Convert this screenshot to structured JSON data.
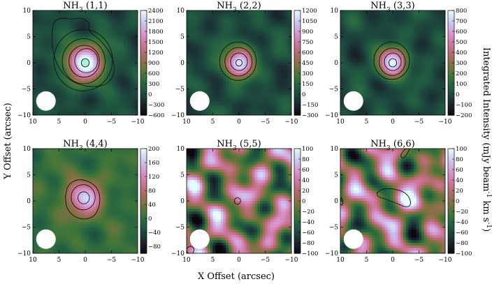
{
  "chart_data": {
    "type": "heatmap",
    "xlabel": "X Offset (arcsec)",
    "ylabel": "Y Offset (arcsec)",
    "colorbar_label": "Integrated Intensity (mJy beam^-1 km s^-1)",
    "colorbar_label_parts": {
      "p1": "Integrated Intensity (mJy beam",
      "sup1": "-1",
      "p2": " km s",
      "sup2": "-1",
      "p3": ")"
    },
    "xlim": [
      10,
      -10
    ],
    "ylim": [
      -10,
      10
    ],
    "x_ticks": [
      "10",
      "5",
      "0",
      "−5",
      "−10"
    ],
    "y_ticks": [
      "10",
      "5",
      "0",
      "−5",
      "−10"
    ],
    "colormap": "cubehelix",
    "beam": {
      "x": 7.5,
      "y": -7.3,
      "label": "beam"
    },
    "panels": [
      {
        "title_base": "NH",
        "title_sub": "3",
        "title_trans": " (1,1)",
        "vmin": -600,
        "vmax": 2400,
        "cbar_ticks": [
          "2400",
          "2100",
          "1800",
          "1500",
          "1200",
          "900",
          "600",
          "300",
          "0",
          "−300",
          "−600"
        ],
        "peak": 2400,
        "peak_x": 0,
        "peak_y": 0,
        "sigma": 2.6,
        "contours": [
          {
            "type": "blob",
            "cx": -0.2,
            "cy": 0.4,
            "r": 2.2
          },
          {
            "type": "blob",
            "cx": 0.2,
            "cy": 0.3,
            "r": 2.9
          },
          {
            "type": "blob",
            "cx": 0.3,
            "cy": 0.3,
            "r": 4.1
          },
          {
            "type": "blob",
            "cx": 0.4,
            "cy": 0.5,
            "r": 5.6
          },
          {
            "type": "path",
            "pts": [
              [
                6.3,
                3.2
              ],
              [
                6.4,
                5.8
              ],
              [
                6.0,
                8.0
              ],
              [
                4.5,
                8.6
              ],
              [
                2.6,
                8.3
              ],
              [
                0.6,
                8.6
              ],
              [
                -0.9,
                7.6
              ],
              [
                -0.6,
                6.0
              ],
              [
                -2.4,
                4.8
              ],
              [
                -4.6,
                2.3
              ],
              [
                -5.7,
                -0.6
              ],
              [
                -5.2,
                -3.0
              ],
              [
                -3.6,
                -4.4
              ],
              [
                -0.8,
                -4.6
              ],
              [
                1.8,
                -4.0
              ],
              [
                4.1,
                -2.4
              ],
              [
                5.7,
                0.2
              ]
            ]
          },
          {
            "type": "blob",
            "cx": 0.0,
            "cy": 0.0,
            "r": 0.75,
            "fill": "#a9f2df"
          }
        ]
      },
      {
        "title_base": "NH",
        "title_sub": "3",
        "title_trans": " (2,2)",
        "vmin": -300,
        "vmax": 1200,
        "cbar_ticks": [
          "1200",
          "1050",
          "900",
          "750",
          "600",
          "450",
          "300",
          "150",
          "0",
          "−150",
          "−300"
        ],
        "peak": 1150,
        "peak_x": 0,
        "peak_y": 0,
        "sigma": 2.0,
        "contours": [
          {
            "type": "blob",
            "cx": 0.0,
            "cy": 0.2,
            "r": 1.6
          },
          {
            "type": "blob",
            "cx": 0.1,
            "cy": 0.2,
            "r": 2.6
          },
          {
            "type": "blob",
            "cx": 0.2,
            "cy": 0.3,
            "r": 3.5
          },
          {
            "type": "blob",
            "cx": 0.0,
            "cy": 0.0,
            "r": 0.6
          }
        ]
      },
      {
        "title_base": "NH",
        "title_sub": "3",
        "title_trans": " (3,3)",
        "vmin": -200,
        "vmax": 800,
        "cbar_ticks": [
          "800",
          "700",
          "600",
          "500",
          "400",
          "300",
          "200",
          "100",
          "0",
          "−100",
          "−200"
        ],
        "peak": 780,
        "peak_x": 0,
        "peak_y": 0,
        "sigma": 1.9,
        "contours": [
          {
            "type": "blob",
            "cx": 0.0,
            "cy": 0.2,
            "r": 1.6
          },
          {
            "type": "blob",
            "cx": 0.1,
            "cy": 0.2,
            "r": 2.5
          },
          {
            "type": "blob",
            "cx": 0.2,
            "cy": 0.4,
            "r": 3.4
          },
          {
            "type": "blob",
            "cx": 0.0,
            "cy": 0.0,
            "r": 0.75
          }
        ]
      },
      {
        "title_base": "NH",
        "title_sub": "3",
        "title_trans": " (4,4)",
        "vmin": -100,
        "vmax": 200,
        "cbar_ticks": [
          "200",
          "160",
          "120",
          "80",
          "40",
          "0",
          "−40",
          "−80"
        ],
        "peak": 150,
        "peak_x": 0.3,
        "peak_y": 0.5,
        "sigma": 2.5,
        "contours": [
          {
            "type": "blob",
            "cx": 0.3,
            "cy": 0.6,
            "r": 1.1
          },
          {
            "type": "blob",
            "cx": 0.4,
            "cy": 0.7,
            "r": 2.3
          },
          {
            "type": "path",
            "pts": [
              [
                3.8,
                0.8
              ],
              [
                3.4,
                3.0
              ],
              [
                1.6,
                4.2
              ],
              [
                -0.8,
                3.8
              ],
              [
                -2.6,
                2.2
              ],
              [
                -2.9,
                -0.4
              ],
              [
                -1.9,
                -2.9
              ],
              [
                0.2,
                -3.6
              ],
              [
                2.2,
                -3.0
              ],
              [
                3.6,
                -1.4
              ]
            ]
          }
        ]
      },
      {
        "title_base": "NH",
        "title_sub": "3",
        "title_trans": " (5,5)",
        "vmin": -100,
        "vmax": 100,
        "cbar_ticks": [
          "100",
          "80",
          "60",
          "40",
          "20",
          "0",
          "−20",
          "−40",
          "−60",
          "−80",
          "−100"
        ],
        "peak": 45,
        "peak_x": 0.3,
        "peak_y": 0.2,
        "sigma": 1.4,
        "contours": [
          {
            "type": "blob",
            "cx": 0.3,
            "cy": 0.0,
            "r": 0.6
          },
          {
            "type": "blob",
            "cx": 9.3,
            "cy": -9.4,
            "r": 0.7
          }
        ]
      },
      {
        "title_base": "NH",
        "title_sub": "3",
        "title_trans": " (6,6)",
        "vmin": -100,
        "vmax": 100,
        "cbar_ticks": [
          "100",
          "80",
          "60",
          "40",
          "20",
          "0",
          "−20",
          "−40",
          "−60",
          "−80",
          "−100"
        ],
        "peak": 70,
        "peak_x": -1.2,
        "peak_y": 0.8,
        "sigma": 1.9,
        "contours": [
          {
            "type": "path",
            "pts": [
              [
                3.0,
                1.6
              ],
              [
                1.8,
                2.4
              ],
              [
                -0.6,
                2.3
              ],
              [
                -2.8,
                1.4
              ],
              [
                -3.6,
                -0.5
              ],
              [
                -2.8,
                -1.3
              ],
              [
                -0.6,
                -0.4
              ],
              [
                1.5,
                0.4
              ],
              [
                2.9,
                0.8
              ]
            ]
          },
          {
            "type": "path",
            "pts": [
              [
                9.8,
                0.6
              ],
              [
                9.4,
                -0.1
              ],
              [
                9.7,
                -0.9
              ],
              [
                10.1,
                -0.6
              ]
            ]
          },
          {
            "type": "path",
            "pts": [
              [
                -3.2,
                9.9
              ],
              [
                -2.8,
                9.1
              ],
              [
                -2.0,
                8.0
              ],
              [
                -1.4,
                8.6
              ],
              [
                -2.0,
                9.6
              ],
              [
                -2.7,
                10.1
              ]
            ]
          }
        ]
      }
    ]
  }
}
